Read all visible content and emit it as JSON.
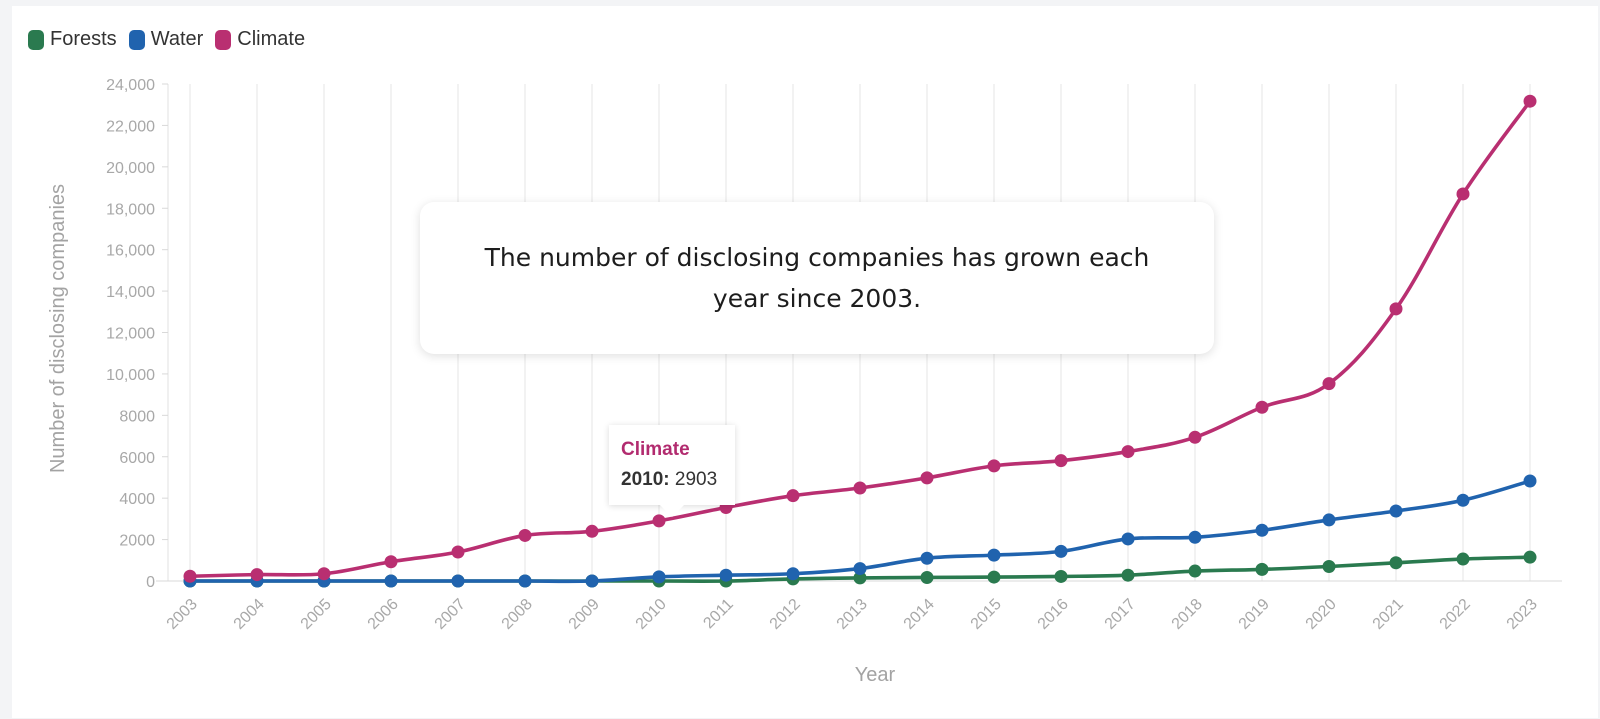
{
  "colors": {
    "Forests": "#2a7a4f",
    "Water": "#2063ae",
    "Climate": "#b92f71"
  },
  "callout": {
    "text": "The number of disclosing companies has grown each year since 2003."
  },
  "tooltip": {
    "series": "Climate",
    "year_label": "2010:",
    "value": "2903"
  },
  "chart_data": {
    "type": "line",
    "title": "",
    "xlabel": "Year",
    "ylabel": "Number of disclosing companies",
    "x": [
      "2003",
      "2004",
      "2005",
      "2006",
      "2007",
      "2008",
      "2009",
      "2010",
      "2011",
      "2012",
      "2013",
      "2014",
      "2015",
      "2016",
      "2017",
      "2018",
      "2019",
      "2020",
      "2021",
      "2022",
      "2023"
    ],
    "ylim": [
      0,
      24000
    ],
    "yticks": [
      0,
      2000,
      4000,
      6000,
      8000,
      10000,
      12000,
      14000,
      16000,
      18000,
      20000,
      22000,
      24000
    ],
    "ytick_labels": [
      "0",
      "2000",
      "4000",
      "6000",
      "8000",
      "10,000",
      "12,000",
      "14,000",
      "16,000",
      "18,000",
      "20,000",
      "22,000",
      "24,000"
    ],
    "grid": "vertical",
    "legend": "top-left",
    "series": [
      {
        "name": "Forests",
        "values": [
          0,
          0,
          0,
          0,
          0,
          0,
          0,
          0,
          0,
          100,
          150,
          170,
          190,
          220,
          280,
          480,
          560,
          700,
          880,
          1060,
          1150
        ]
      },
      {
        "name": "Water",
        "values": [
          0,
          0,
          0,
          0,
          0,
          0,
          0,
          200,
          280,
          350,
          600,
          1100,
          1250,
          1430,
          2030,
          2110,
          2450,
          2950,
          3380,
          3900,
          4830
        ]
      },
      {
        "name": "Climate",
        "values": [
          230,
          310,
          350,
          930,
          1400,
          2200,
          2400,
          2903,
          3550,
          4120,
          4490,
          4980,
          5560,
          5810,
          6250,
          6940,
          8390,
          9530,
          13140,
          18690,
          23170
        ]
      }
    ]
  }
}
